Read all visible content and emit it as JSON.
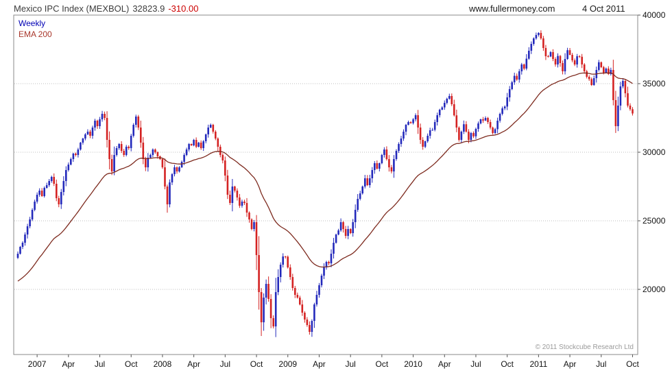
{
  "header": {
    "title": "Mexico IPC Index (MEXBOL)",
    "last_price": "32823.9",
    "change": "-310.00",
    "website": "www.fullermoney.com",
    "date": "4 Oct 2011"
  },
  "legend": {
    "timeframe": "Weekly",
    "ema_label": "EMA 200"
  },
  "footer": {
    "copyright": "© 2011 Stockcube Research Ltd"
  },
  "colors": {
    "up": "#2329bb",
    "down": "#d42222",
    "ema": "#7d2a1e",
    "grid": "#bdbdbd",
    "border": "#8a8a8a",
    "axis_text": "#111111",
    "change": "#cc0000"
  },
  "chart_data": {
    "type": "candlestick",
    "timeframe": "weekly",
    "title": "Mexico IPC Index (MEXBOL) 32823.9 -310.00",
    "source": "www.fullermoney.com",
    "as_of": "4 Oct 2011",
    "ylabel": "",
    "xlabel": "",
    "y_ticks": [
      20000,
      25000,
      30000,
      35000,
      40000
    ],
    "y_range": [
      15250,
      40000
    ],
    "grid": "horizontal-dotted",
    "legend_position": "top-left",
    "x_tick_labels": [
      "2007",
      "Apr",
      "Jul",
      "Oct",
      "2008",
      "Apr",
      "Jul",
      "Oct",
      "2009",
      "Apr",
      "Jul",
      "Oct",
      "2010",
      "Apr",
      "Jul",
      "Oct",
      "2011",
      "Apr",
      "Jul",
      "Oct"
    ],
    "x_tick_weeks": [
      8,
      21,
      34,
      47,
      60,
      73,
      86,
      99,
      112,
      125,
      138,
      151,
      164,
      177,
      190,
      203,
      216,
      229,
      242,
      255
    ],
    "start": "Nov 2006",
    "end": "Oct 2011",
    "first_open": 22300,
    "last_close": 32823.9,
    "last_change": -310.0,
    "closes": [
      22600,
      23100,
      23400,
      24000,
      24600,
      25100,
      25800,
      26400,
      26900,
      27200,
      26800,
      27400,
      27600,
      27900,
      28200,
      27700,
      26650,
      26200,
      27100,
      27900,
      28700,
      29100,
      29500,
      29900,
      29800,
      30200,
      30700,
      31000,
      31300,
      31500,
      31200,
      31800,
      32300,
      31900,
      32400,
      32800,
      32500,
      30900,
      29500,
      28600,
      29800,
      30300,
      30600,
      30100,
      29800,
      30400,
      30300,
      31200,
      32000,
      32600,
      31800,
      30700,
      29500,
      28900,
      29600,
      29800,
      30200,
      30000,
      29700,
      29500,
      28900,
      27500,
      26200,
      27800,
      28400,
      28900,
      28600,
      28900,
      29300,
      29800,
      30200,
      30600,
      30500,
      30900,
      30400,
      30700,
      30300,
      30800,
      31300,
      31800,
      32000,
      31500,
      31000,
      30400,
      29800,
      29400,
      28300,
      26900,
      26300,
      27500,
      27200,
      26700,
      26100,
      26400,
      26300,
      25600,
      25100,
      24400,
      24900,
      22500,
      19800,
      17600,
      19400,
      20400,
      19300,
      17900,
      17300,
      19800,
      20900,
      21800,
      22400,
      22380,
      21600,
      20900,
      20100,
      19600,
      19400,
      18900,
      18300,
      17800,
      17400,
      16900,
      17700,
      18900,
      19600,
      20300,
      21000,
      21600,
      22000,
      21900,
      22600,
      23400,
      24000,
      24300,
      24900,
      24400,
      23900,
      24400,
      24100,
      24900,
      25800,
      26600,
      27000,
      27500,
      28100,
      27600,
      28100,
      28700,
      29200,
      28800,
      29200,
      29800,
      30200,
      29500,
      28900,
      28600,
      29500,
      30100,
      30600,
      31000,
      31500,
      32000,
      32200,
      32120,
      32400,
      32700,
      31800,
      30900,
      30400,
      30800,
      31200,
      31600,
      31630,
      32200,
      32700,
      33100,
      33270,
      33600,
      33900,
      34100,
      33500,
      32690,
      31800,
      30900,
      31500,
      32040,
      31500,
      30900,
      31400,
      31160,
      31700,
      32100,
      32400,
      32310,
      32500,
      32200,
      31800,
      31400,
      31680,
      32300,
      32800,
      33200,
      33330,
      34000,
      34600,
      35100,
      35570,
      35300,
      35900,
      36400,
      36100,
      36820,
      37400,
      37900,
      38300,
      38550,
      38700,
      38300,
      37600,
      37000,
      36980,
      37300,
      36800,
      36400,
      37020,
      36500,
      35900,
      36800,
      37440,
      37100,
      36700,
      36400,
      37000,
      36960,
      36400,
      35900,
      35500,
      35330,
      34900,
      35400,
      36000,
      36560,
      36200,
      35800,
      36100,
      35700,
      36000,
      33800,
      31900,
      33400,
      34800,
      35200,
      34300,
      33400,
      33133.9,
      32823.9
    ],
    "ema": {
      "label": "EMA 200",
      "weeks": 40,
      "seed": 20500
    }
  }
}
